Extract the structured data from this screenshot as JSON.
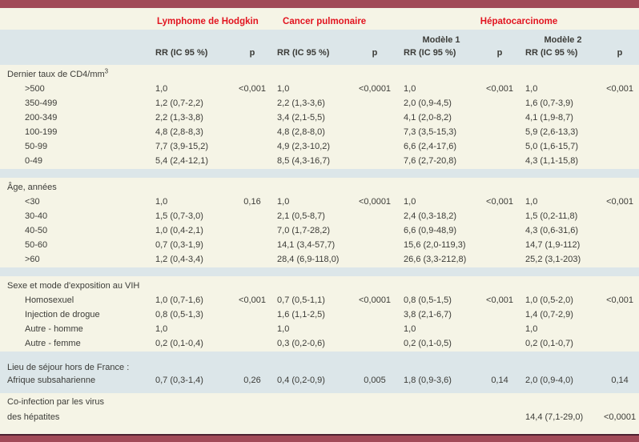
{
  "header": {
    "groups": [
      "Lymphome de Hodgkin",
      "Cancer pulmonaire",
      "Hépatocarcinome"
    ],
    "model1": "Modèle 1",
    "model2": "Modèle 2",
    "rr_label": "RR (IC 95 %)",
    "p_label": "p"
  },
  "colors": {
    "accent_red": "#e2141f",
    "bar_maroon": "#a14a58",
    "bar_edge_dark": "#4b2130",
    "band_blue": "#dce6e9",
    "background_cream": "#f5f4e6",
    "text": "#3c3c38"
  },
  "sections": [
    {
      "name": "cd4",
      "bg": "cream",
      "separator_after": true,
      "rows": [
        {
          "label": "Dernier taux de CD4/mm",
          "sup": "3"
        },
        {
          "label": ">500",
          "indent": true,
          "cells": [
            "1,0",
            "<0,001",
            "1,0",
            "<0,0001",
            "1,0",
            "<0,001",
            "1,0",
            "<0,001"
          ]
        },
        {
          "label": "350-499",
          "indent": true,
          "cells": [
            "1,2 (0,7-2,2)",
            "",
            "2,2 (1,3-3,6)",
            "",
            "2,0 (0,9-4,5)",
            "",
            "1,6 (0,7-3,9)",
            ""
          ]
        },
        {
          "label": "200-349",
          "indent": true,
          "cells": [
            "2,2 (1,3-3,8)",
            "",
            "3,4 (2,1-5,5)",
            "",
            "4,1 (2,0-8,2)",
            "",
            "4,1 (1,9-8,7)",
            ""
          ]
        },
        {
          "label": "100-199",
          "indent": true,
          "cells": [
            "4,8 (2,8-8,3)",
            "",
            "4,8 (2,8-8,0)",
            "",
            "7,3 (3,5-15,3)",
            "",
            "5,9 (2,6-13,3)",
            ""
          ]
        },
        {
          "label": "50-99",
          "indent": true,
          "cells": [
            "7,7 (3,9-15,2)",
            "",
            "4,9 (2,3-10,2)",
            "",
            "6,6 (2,4-17,6)",
            "",
            "5,0 (1,6-15,7)",
            ""
          ]
        },
        {
          "label": "0-49",
          "indent": true,
          "cells": [
            "5,4 (2,4-12,1)",
            "",
            "8,5 (4,3-16,7)",
            "",
            "7,6 (2,7-20,8)",
            "",
            "4,3 (1,1-15,8)",
            ""
          ]
        }
      ]
    },
    {
      "name": "age",
      "bg": "cream",
      "separator_after": true,
      "rows": [
        {
          "label": "Âge, années"
        },
        {
          "label": "<30",
          "indent": true,
          "cells": [
            "1,0",
            "0,16",
            "1,0",
            "<0,0001",
            "1,0",
            "<0,001",
            "1,0",
            "<0,001"
          ]
        },
        {
          "label": "30-40",
          "indent": true,
          "cells": [
            "1,5 (0,7-3,0)",
            "",
            "2,1 (0,5-8,7)",
            "",
            "2,4 (0,3-18,2)",
            "",
            "1,5 (0,2-11,8)",
            ""
          ]
        },
        {
          "label": "40-50",
          "indent": true,
          "cells": [
            "1,0 (0,4-2,1)",
            "",
            "7,0 (1,7-28,2)",
            "",
            "6,6 (0,9-48,9)",
            "",
            "4,3 (0,6-31,6)",
            ""
          ]
        },
        {
          "label": "50-60",
          "indent": true,
          "cells": [
            "0,7 (0,3-1,9)",
            "",
            "14,1 (3,4-57,7)",
            "",
            "15,6 (2,0-119,3)",
            "",
            "14,7 (1,9-112)",
            ""
          ]
        },
        {
          "label": ">60",
          "indent": true,
          "cells": [
            "1,2 (0,4-3,4)",
            "",
            "28,4 (6,9-118,0)",
            "",
            "26,6 (3,3-212,8)",
            "",
            "25,2 (3,1-203)",
            ""
          ]
        }
      ]
    },
    {
      "name": "sexe",
      "bg": "cream",
      "separator_after": false,
      "rows": [
        {
          "label": "Sexe et mode d'exposition au VIH"
        },
        {
          "label": "Homosexuel",
          "indent": true,
          "cells": [
            "1,0 (0,7-1,6)",
            "<0,001",
            "0,7 (0,5-1,1)",
            "<0,0001",
            "0,8 (0,5-1,5)",
            "<0,001",
            "1,0 (0,5-2,0)",
            "<0,001"
          ]
        },
        {
          "label": "Injection de drogue",
          "indent": true,
          "cells": [
            "0,8 (0,5-1,3)",
            "",
            "1,6 (1,1-2,5)",
            "",
            "3,8 (2,1-6,7)",
            "",
            "1,4 (0,7-2,9)",
            ""
          ]
        },
        {
          "label": "Autre - homme",
          "indent": true,
          "cells": [
            "1,0",
            "",
            "1,0",
            "",
            "1,0",
            "",
            "1,0",
            ""
          ]
        },
        {
          "label": "Autre - femme",
          "indent": true,
          "cells": [
            "0,2 (0,1-0,4)",
            "",
            "0,3 (0,2-0,6)",
            "",
            "0,2 (0,1-0,5)",
            "",
            "0,2 (0,1-0,7)",
            ""
          ]
        }
      ]
    },
    {
      "name": "lieu",
      "bg": "blue",
      "separator_after": false,
      "rows": [
        {
          "label": "Lieu de séjour hors de France :"
        },
        {
          "label": "Afrique subsaharienne",
          "cells": [
            "0,7 (0,3-1,4)",
            "0,26",
            "0,4 (0,2-0,9)",
            "0,005",
            "1,8 (0,9-3,6)",
            "0,14",
            "2,0 (0,9-4,0)",
            "0,14"
          ]
        }
      ]
    },
    {
      "name": "coinfection",
      "bg": "cream",
      "separator_after": false,
      "rows": [
        {
          "label": "Co-infection par les virus"
        },
        {
          "label": "des hépatites",
          "cells": [
            "",
            "",
            "",
            "",
            "",
            "",
            "14,4 (7,1-29,0)",
            "<0,0001"
          ]
        }
      ]
    }
  ]
}
